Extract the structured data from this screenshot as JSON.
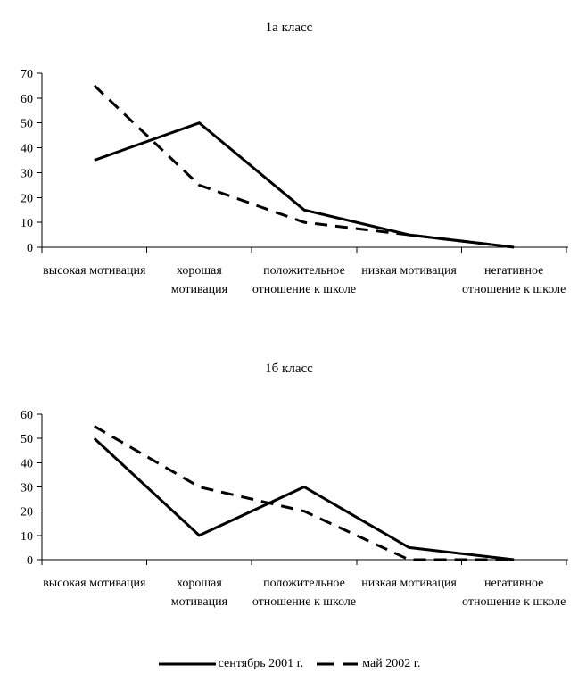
{
  "figure": {
    "background": "#ffffff"
  },
  "colors": {
    "line": "#000000",
    "text": "#000000",
    "background": "#ffffff"
  },
  "chart_data": [
    {
      "type": "line",
      "title": "1а класс",
      "xlabel": "",
      "ylabel": "",
      "categories": [
        "высокая мотивация",
        "хорошая мотивация",
        "положительное отношение к школе",
        "низкая мотивация",
        "негативное отношение к школе"
      ],
      "ylim": [
        0,
        70
      ],
      "ytick_step": 10,
      "yticks": [
        0,
        10,
        20,
        30,
        40,
        50,
        60,
        70
      ],
      "grid": false,
      "series": [
        {
          "name": "сентябрь 2001 г.",
          "style": "solid",
          "values": [
            35,
            50,
            15,
            5,
            0
          ]
        },
        {
          "name": "май 2002 г.",
          "style": "dashed",
          "values": [
            65,
            25,
            10,
            5,
            0
          ]
        }
      ]
    },
    {
      "type": "line",
      "title": "1б класс",
      "xlabel": "",
      "ylabel": "",
      "categories": [
        "высокая мотивация",
        "хорошая мотивация",
        "положительное отношение к школе",
        "низкая мотивация",
        "негативное отношение к школе"
      ],
      "ylim": [
        0,
        60
      ],
      "ytick_step": 10,
      "yticks": [
        0,
        10,
        20,
        30,
        40,
        50,
        60
      ],
      "grid": false,
      "series": [
        {
          "name": "сентябрь 2001 г.",
          "style": "solid",
          "values": [
            50,
            10,
            30,
            5,
            0
          ]
        },
        {
          "name": "май 2002 г.",
          "style": "dashed",
          "values": [
            55,
            30,
            20,
            0,
            0
          ]
        }
      ]
    }
  ],
  "legend": {
    "position": "bottom-center",
    "items": [
      {
        "label": "сентябрь 2001 г.",
        "style": "solid"
      },
      {
        "label": "май 2002 г.",
        "style": "dashed"
      }
    ]
  }
}
